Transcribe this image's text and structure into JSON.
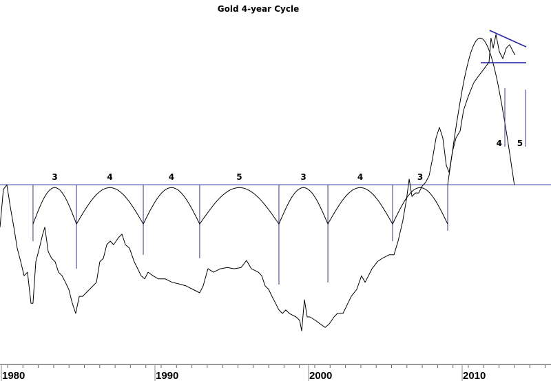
{
  "chart_data": {
    "type": "line",
    "title": "Gold 4-year Cycle",
    "xlabel": "",
    "ylabel": "",
    "xlim": [
      1979.9,
      2015.8
    ],
    "ylim": [
      0,
      100
    ],
    "grid": false,
    "x_tick_labels": [
      "1980",
      "1990",
      "2000",
      "2010"
    ],
    "x_major_ticks": [
      1980,
      1990,
      2000,
      2010
    ],
    "x_minor_tick_step": 1,
    "colors": {
      "price": "#000000",
      "cycle_arcs": "#000000",
      "trough_lines": "#5555aa",
      "reference_line": "#333399",
      "trend_lines": "#2222aa",
      "axis": "#999999"
    },
    "series": [
      {
        "x": [
          1979.91,
          1980.13,
          1980.36,
          1980.58,
          1980.81,
          1981.03,
          1981.26,
          1981.48,
          1981.7,
          1981.93,
          1982.06,
          1982.24,
          1982.47,
          1982.69,
          1982.83,
          1983.05,
          1983.27,
          1983.5,
          1983.72,
          1983.95,
          1984.17,
          1984.39,
          1984.62,
          1984.84,
          1985.07,
          1985.29,
          1985.74,
          1986.19,
          1986.41,
          1986.64,
          1986.86,
          1987.09,
          1987.31,
          1987.62,
          1987.85,
          1988.07,
          1988.34,
          1988.65,
          1988.88,
          1989.1,
          1989.33,
          1989.55,
          1989.87,
          1990.22,
          1990.67,
          1991.12,
          1991.57,
          1992.02,
          1992.47,
          1992.91,
          1993.14,
          1993.45,
          1993.81,
          1994.26,
          1994.71,
          1995.16,
          1995.61,
          1995.96,
          1996.28,
          1996.73,
          1996.95,
          1997.17,
          1997.4,
          1997.62,
          1997.85,
          1998.07,
          1998.3,
          1998.52,
          1998.74,
          1999.19,
          1999.42,
          1999.55,
          1999.73,
          1999.91,
          2000.09,
          2000.45,
          2000.76,
          2001.08,
          2001.35,
          2001.66,
          2001.88,
          2002.24,
          2002.56,
          2002.78,
          2003.14,
          2003.45,
          2003.68,
          2004.13,
          2004.48,
          2004.8,
          2005.25,
          2005.56,
          2005.83,
          2006.14,
          2006.37,
          2006.55,
          2006.73,
          2006.95,
          2007.17,
          2007.4,
          2007.62,
          2007.85,
          2008.07,
          2008.3,
          2008.52,
          2008.74,
          2008.97,
          2009.15,
          2009.37,
          2009.6,
          2009.87,
          2010.09,
          2010.4,
          2010.76,
          2011.08,
          2011.43,
          2011.75,
          2011.88,
          2012.02,
          2012.2,
          2012.42,
          2012.65,
          2012.87,
          2013.09,
          2013.32,
          2013.45
        ],
        "y": [
          37.0,
          48.9,
          50.4,
          43.5,
          37.0,
          30.4,
          26.1,
          21.7,
          22.8,
          13.0,
          13.0,
          26.1,
          30.4,
          34.8,
          37.0,
          29.3,
          27.2,
          26.1,
          22.8,
          21.7,
          19.6,
          17.4,
          13.0,
          9.8,
          15.2,
          15.2,
          17.4,
          19.6,
          26.1,
          27.2,
          31.5,
          32.6,
          31.5,
          33.7,
          34.8,
          31.5,
          30.4,
          26.1,
          23.9,
          21.7,
          20.7,
          22.8,
          21.7,
          20.7,
          20.7,
          19.6,
          19.1,
          18.5,
          17.4,
          16.3,
          18.5,
          23.9,
          22.8,
          23.9,
          24.3,
          23.9,
          24.3,
          26.5,
          23.9,
          22.8,
          21.7,
          18.5,
          17.4,
          15.2,
          13.0,
          10.9,
          9.8,
          10.9,
          9.8,
          8.7,
          7.6,
          4.3,
          14.1,
          8.7,
          8.7,
          7.6,
          6.5,
          5.4,
          6.5,
          8.7,
          9.8,
          9.8,
          13.0,
          15.2,
          17.4,
          21.7,
          19.6,
          23.9,
          26.1,
          27.2,
          28.3,
          28.3,
          32.6,
          39.1,
          45.7,
          52.2,
          46.7,
          47.8,
          47.8,
          50.0,
          51.1,
          53.3,
          58.7,
          65.2,
          68.5,
          65.2,
          56.5,
          54.3,
          60.9,
          65.2,
          67.4,
          73.9,
          78.3,
          82.6,
          84.8,
          87.0,
          89.1,
          96.7,
          93.5,
          97.8,
          92.4,
          90.2,
          93.5,
          94.6,
          92.4,
          91.3
        ]
      }
    ],
    "reference_line": 50.4,
    "cycle_troughs": [
      {
        "x": 1982.06,
        "line_bottom": 32.6
      },
      {
        "x": 1984.89,
        "line_bottom": 23.9
      },
      {
        "x": 1989.24,
        "line_bottom": 28.3
      },
      {
        "x": 1992.91,
        "line_bottom": 27.2
      },
      {
        "x": 1998.07,
        "line_bottom": 18.9
      },
      {
        "x": 2001.26,
        "line_bottom": 19.6
      },
      {
        "x": 2005.47,
        "line_bottom": 32.6
      },
      {
        "x": 2009.06,
        "line_bottom": 35.9
      }
    ],
    "cycle_arc_low": 38.0,
    "cycle_arc_high": 49.5,
    "cycle_labels": [
      "3",
      "4",
      "4",
      "5",
      "3",
      "4",
      "3"
    ],
    "projected_arc": {
      "start": 2009.06,
      "peak_x": 2011.17,
      "end": 2013.4,
      "base": 50.4,
      "peak": 96.7
    },
    "projected_troughs": [
      {
        "x": 2012.78,
        "top": 80.9,
        "bottom": 62.4,
        "label": "4"
      },
      {
        "x": 2014.13,
        "top": 80.4,
        "bottom": 62.4,
        "label": "5"
      }
    ],
    "trend_lines": [
      {
        "x": [
          2011.79,
          2014.17
        ],
        "y": [
          99.1,
          93.9
        ]
      },
      {
        "x": [
          2011.21,
          2014.17
        ],
        "y": [
          88.9,
          88.9
        ]
      }
    ]
  }
}
